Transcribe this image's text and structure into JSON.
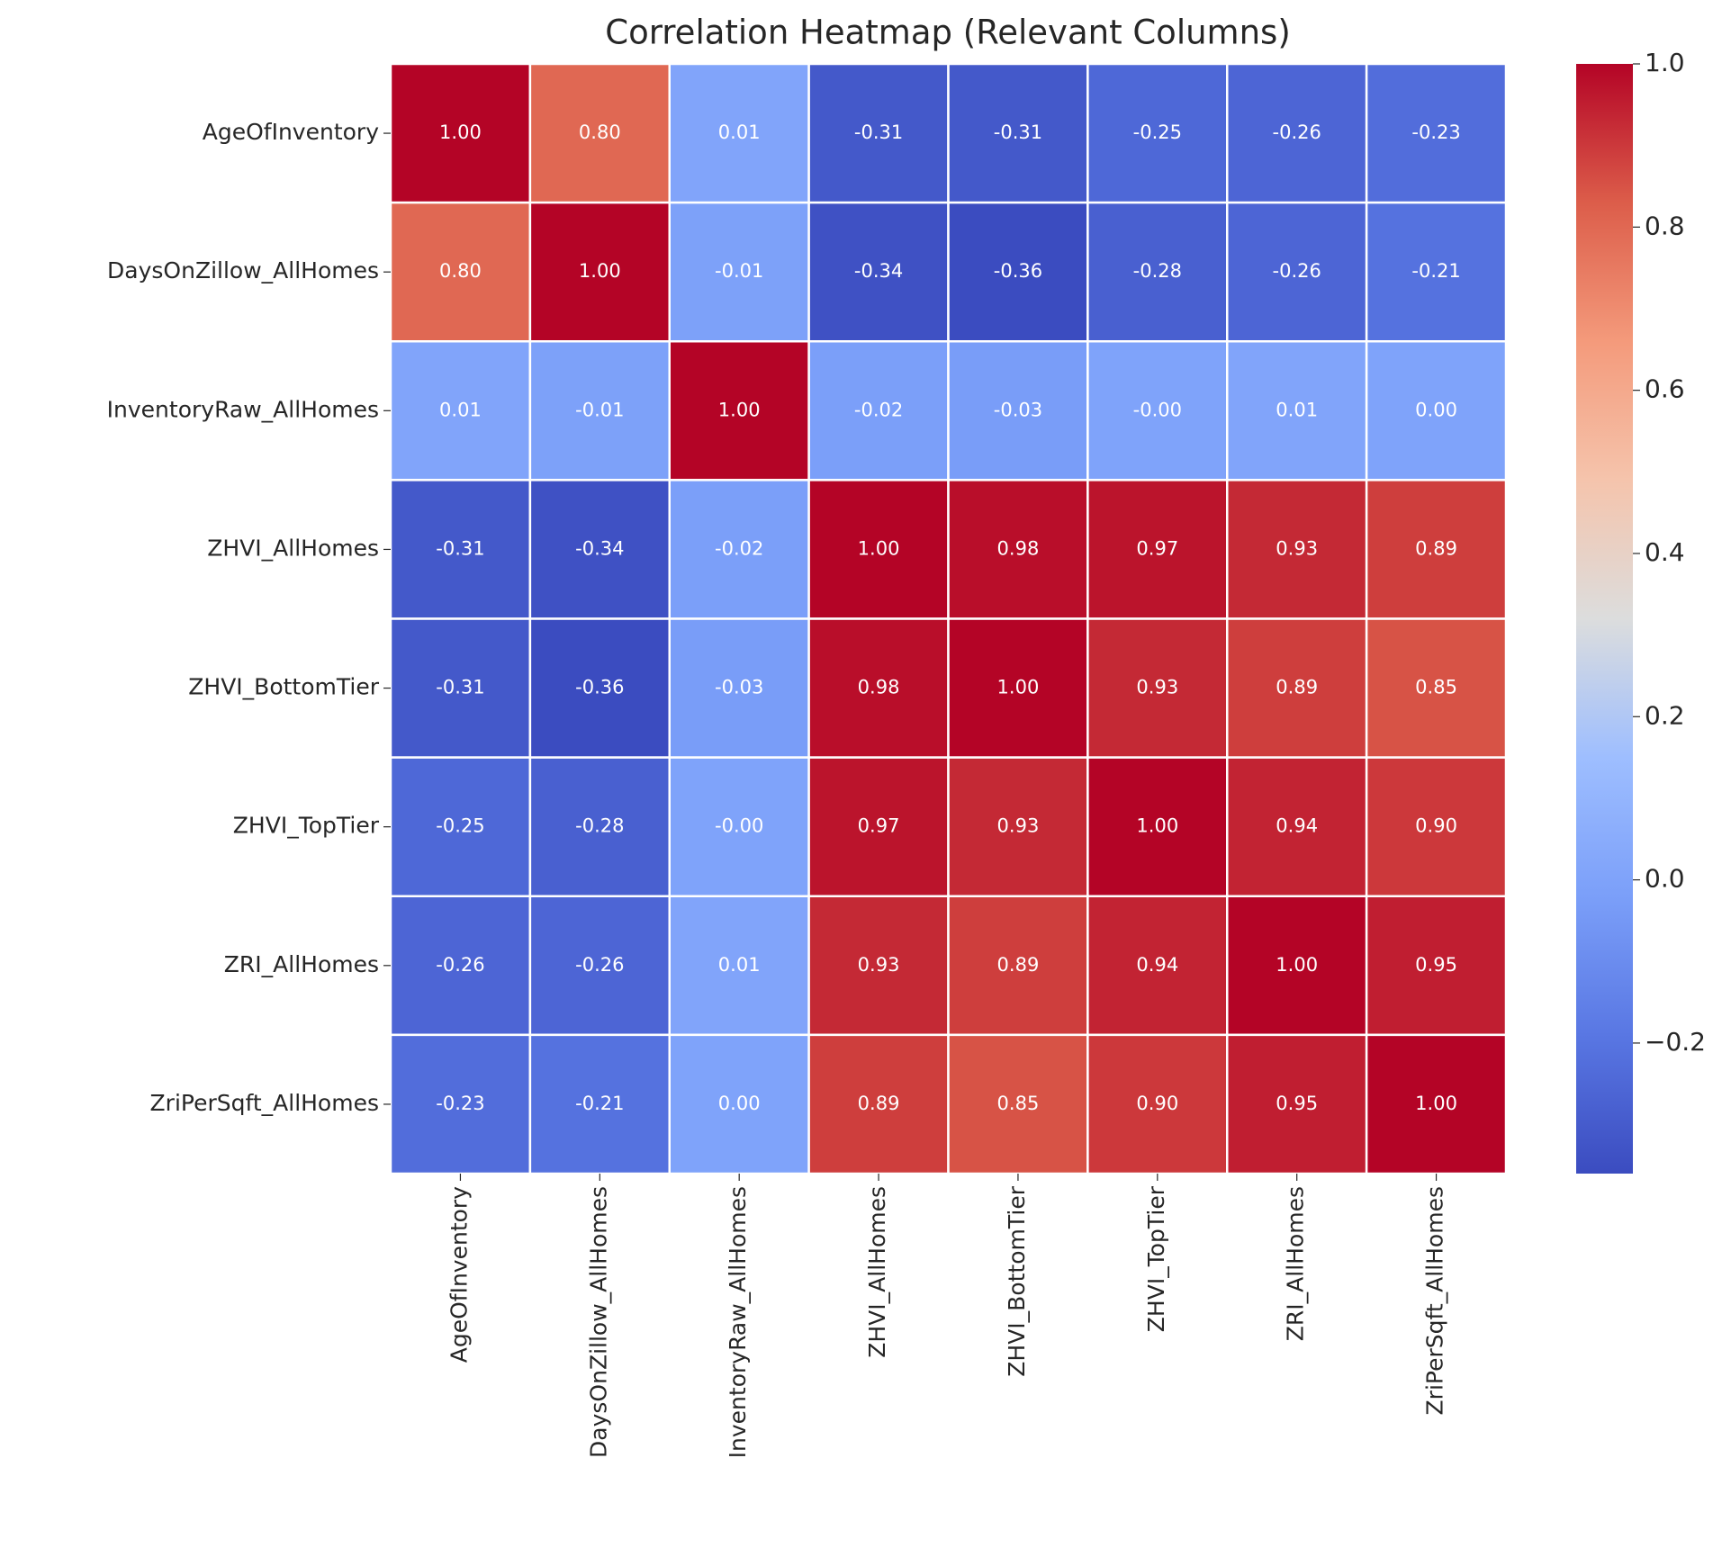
{
  "chart_data": {
    "type": "heatmap",
    "title": "Correlation Heatmap (Relevant Columns)",
    "colormap": "coolwarm",
    "x_categories": [
      "AgeOfInventory",
      "DaysOnZillow_AllHomes",
      "InventoryRaw_AllHomes",
      "ZHVI_AllHomes",
      "ZHVI_BottomTier",
      "ZHVI_TopTier",
      "ZRI_AllHomes",
      "ZriPerSqft_AllHomes"
    ],
    "y_categories": [
      "AgeOfInventory",
      "DaysOnZillow_AllHomes",
      "InventoryRaw_AllHomes",
      "ZHVI_AllHomes",
      "ZHVI_BottomTier",
      "ZHVI_TopTier",
      "ZRI_AllHomes",
      "ZriPerSqft_AllHomes"
    ],
    "values": [
      [
        1,
        0.8,
        0.01,
        -0.31,
        -0.31,
        -0.25,
        -0.26,
        -0.23
      ],
      [
        0.8,
        1,
        -0.01,
        -0.34,
        -0.36,
        -0.28,
        -0.26,
        -0.21
      ],
      [
        0.01,
        -0.01,
        1,
        -0.02,
        -0.03,
        0,
        0.01,
        0
      ],
      [
        -0.31,
        -0.34,
        -0.02,
        1,
        0.98,
        0.97,
        0.93,
        0.89
      ],
      [
        -0.31,
        -0.36,
        -0.03,
        0.98,
        1,
        0.93,
        0.89,
        0.85
      ],
      [
        -0.25,
        -0.28,
        0,
        0.97,
        0.93,
        1,
        0.94,
        0.9
      ],
      [
        -0.26,
        -0.26,
        0.01,
        0.93,
        0.89,
        0.94,
        1,
        0.95
      ],
      [
        -0.23,
        -0.21,
        0,
        0.89,
        0.85,
        0.9,
        0.95,
        1
      ]
    ],
    "value_labels": [
      [
        "1.00",
        "0.80",
        "0.01",
        "-0.31",
        "-0.31",
        "-0.25",
        "-0.26",
        "-0.23"
      ],
      [
        "0.80",
        "1.00",
        "-0.01",
        "-0.34",
        "-0.36",
        "-0.28",
        "-0.26",
        "-0.21"
      ],
      [
        "0.01",
        "-0.01",
        "1.00",
        "-0.02",
        "-0.03",
        "-0.00",
        "0.01",
        "0.00"
      ],
      [
        "-0.31",
        "-0.34",
        "-0.02",
        "1.00",
        "0.98",
        "0.97",
        "0.93",
        "0.89"
      ],
      [
        "-0.31",
        "-0.36",
        "-0.03",
        "0.98",
        "1.00",
        "0.93",
        "0.89",
        "0.85"
      ],
      [
        "-0.25",
        "-0.28",
        "-0.00",
        "0.97",
        "0.93",
        "1.00",
        "0.94",
        "0.90"
      ],
      [
        "-0.26",
        "-0.26",
        "0.01",
        "0.93",
        "0.89",
        "0.94",
        "1.00",
        "0.95"
      ],
      [
        "-0.23",
        "-0.21",
        "0.00",
        "0.89",
        "0.85",
        "0.90",
        "0.95",
        "1.00"
      ]
    ],
    "zlim": [
      -0.36,
      1
    ],
    "zticks": [
      {
        "value": -0.2,
        "label": "−0.2"
      },
      {
        "value": 0,
        "label": "0.0"
      },
      {
        "value": 0.2,
        "label": "0.2"
      },
      {
        "value": 0.4,
        "label": "0.4"
      },
      {
        "value": 0.6,
        "label": "0.6"
      },
      {
        "value": 0.8,
        "label": "0.8"
      },
      {
        "value": 1,
        "label": "1.0"
      }
    ]
  }
}
